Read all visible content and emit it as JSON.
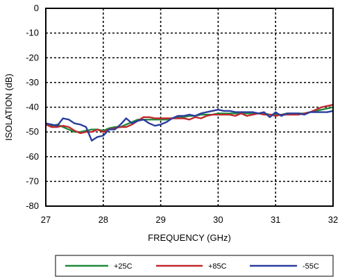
{
  "chart_data": {
    "type": "line",
    "title": "",
    "xlabel": "FREQUENCY (GHz)",
    "ylabel": "ISOLATION (dB)",
    "xlim": [
      27,
      32
    ],
    "ylim": [
      -80,
      0
    ],
    "xticks": [
      27,
      28,
      29,
      30,
      31,
      32
    ],
    "yticks": [
      0,
      -10,
      -20,
      -30,
      -40,
      -50,
      -60,
      -70,
      -80
    ],
    "grid": "dotted",
    "legend_position": "bottom",
    "series": [
      {
        "name": "+25C",
        "color": "#1f8a3c",
        "x": [
          27.0,
          27.1,
          27.2,
          27.3,
          27.4,
          27.5,
          27.6,
          27.7,
          27.8,
          27.9,
          28.0,
          28.1,
          28.2,
          28.3,
          28.4,
          28.5,
          28.6,
          28.7,
          28.8,
          28.9,
          29.0,
          29.1,
          29.2,
          29.3,
          29.4,
          29.5,
          29.6,
          29.7,
          29.8,
          29.9,
          30.0,
          30.1,
          30.2,
          30.3,
          30.4,
          30.5,
          30.6,
          30.7,
          30.8,
          30.9,
          31.0,
          31.1,
          31.2,
          31.3,
          31.4,
          31.5,
          31.6,
          31.7,
          31.8,
          31.9,
          32.0
        ],
        "values": [
          -47,
          -47.5,
          -47,
          -48,
          -49,
          -50,
          -50,
          -49.5,
          -49,
          -49,
          -49.5,
          -48.5,
          -48,
          -48,
          -47,
          -46,
          -45,
          -45,
          -45,
          -45,
          -45,
          -45,
          -44.5,
          -44,
          -44,
          -43.5,
          -43.5,
          -43,
          -43,
          -43,
          -42.5,
          -42.5,
          -42.5,
          -42.5,
          -42.5,
          -42.5,
          -42.5,
          -42.5,
          -42.5,
          -43,
          -43,
          -43,
          -42.5,
          -42.5,
          -42.5,
          -42.5,
          -42,
          -41.5,
          -41,
          -40.5,
          -40
        ]
      },
      {
        "name": "+85C",
        "color": "#c0282d",
        "x": [
          27.0,
          27.1,
          27.2,
          27.3,
          27.4,
          27.5,
          27.6,
          27.7,
          27.8,
          27.9,
          28.0,
          28.1,
          28.2,
          28.3,
          28.4,
          28.5,
          28.6,
          28.7,
          28.8,
          28.9,
          29.0,
          29.1,
          29.2,
          29.3,
          29.4,
          29.5,
          29.6,
          29.7,
          29.8,
          29.9,
          30.0,
          30.1,
          30.2,
          30.3,
          30.4,
          30.5,
          30.6,
          30.7,
          30.8,
          30.9,
          31.0,
          31.1,
          31.2,
          31.3,
          31.4,
          31.5,
          31.6,
          31.7,
          31.8,
          31.9,
          32.0
        ],
        "values": [
          -47,
          -48,
          -48,
          -47.5,
          -48,
          -49.5,
          -50.5,
          -50,
          -50,
          -49,
          -50,
          -49,
          -48.5,
          -48,
          -48,
          -47,
          -45.5,
          -44,
          -44,
          -44.5,
          -44.5,
          -44.5,
          -44.5,
          -44.5,
          -44.5,
          -45,
          -44,
          -44.5,
          -43.5,
          -43,
          -43,
          -43,
          -43,
          -43.5,
          -42.5,
          -43.5,
          -43,
          -42.5,
          -43,
          -43,
          -43.5,
          -43,
          -43,
          -43,
          -43,
          -42.5,
          -42,
          -41,
          -40,
          -39.5,
          -39
        ]
      },
      {
        "name": "-55C",
        "color": "#2a3d9e",
        "x": [
          27.0,
          27.1,
          27.2,
          27.3,
          27.4,
          27.5,
          27.6,
          27.7,
          27.8,
          27.9,
          28.0,
          28.1,
          28.2,
          28.3,
          28.4,
          28.5,
          28.6,
          28.7,
          28.8,
          28.9,
          29.0,
          29.1,
          29.2,
          29.3,
          29.4,
          29.5,
          29.6,
          29.7,
          29.8,
          29.9,
          30.0,
          30.1,
          30.2,
          30.3,
          30.4,
          30.5,
          30.6,
          30.7,
          30.8,
          30.9,
          31.0,
          31.1,
          31.2,
          31.3,
          31.4,
          31.5,
          31.6,
          31.7,
          31.8,
          31.9,
          32.0
        ],
        "values": [
          -46.5,
          -47,
          -47.5,
          -44.5,
          -45,
          -46.5,
          -47,
          -48,
          -53.5,
          -52,
          -51.5,
          -49,
          -49,
          -47,
          -44.5,
          -46.5,
          -45.5,
          -45,
          -46.5,
          -47.5,
          -47,
          -46,
          -44.5,
          -43.5,
          -43.5,
          -43,
          -43.5,
          -42.5,
          -42,
          -41.5,
          -41,
          -41.5,
          -41.5,
          -42,
          -42,
          -42,
          -42,
          -42.5,
          -42,
          -44,
          -42,
          -43.5,
          -42.5,
          -42.5,
          -42.5,
          -43,
          -42,
          -42,
          -42,
          -42,
          -41.5
        ]
      }
    ]
  }
}
